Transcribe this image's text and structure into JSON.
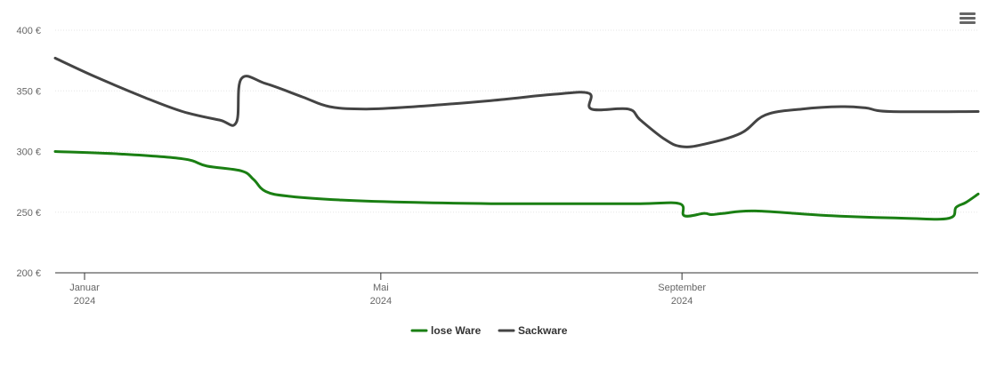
{
  "menu": {
    "icon": "hamburger-menu-icon"
  },
  "chart_data": {
    "type": "line",
    "title": "",
    "xlabel": "",
    "ylabel": "",
    "ylim": [
      200,
      400
    ],
    "y_ticks": [
      200,
      250,
      300,
      350,
      400
    ],
    "y_tick_labels": [
      "200 €",
      "250 €",
      "300 €",
      "350 €",
      "400 €"
    ],
    "x_range": [
      "2023-12-20",
      "2024-12-31"
    ],
    "x_ticks": [
      {
        "date": "2024-01-01",
        "month": "Januar",
        "year": "2024"
      },
      {
        "date": "2024-05-01",
        "month": "Mai",
        "year": "2024"
      },
      {
        "date": "2024-09-01",
        "month": "September",
        "year": "2024"
      }
    ],
    "grid": true,
    "legend_position": "bottom-center",
    "series": [
      {
        "name": "lose Ware",
        "color": "#1a7f13",
        "points": [
          [
            "2023-12-20",
            300
          ],
          [
            "2024-01-15",
            298
          ],
          [
            "2024-02-10",
            294
          ],
          [
            "2024-02-20",
            288
          ],
          [
            "2024-03-05",
            284
          ],
          [
            "2024-03-10",
            277
          ],
          [
            "2024-03-15",
            267
          ],
          [
            "2024-03-25",
            263
          ],
          [
            "2024-04-15",
            260
          ],
          [
            "2024-05-15",
            258
          ],
          [
            "2024-06-15",
            257
          ],
          [
            "2024-07-15",
            257
          ],
          [
            "2024-08-15",
            257
          ],
          [
            "2024-08-31",
            257
          ],
          [
            "2024-09-02",
            247
          ],
          [
            "2024-09-10",
            249
          ],
          [
            "2024-09-13",
            248
          ],
          [
            "2024-09-18",
            249
          ],
          [
            "2024-10-01",
            251
          ],
          [
            "2024-11-01",
            247
          ],
          [
            "2024-12-01",
            245
          ],
          [
            "2024-12-19",
            245
          ],
          [
            "2024-12-22",
            254
          ],
          [
            "2024-12-26",
            258
          ],
          [
            "2024-12-31",
            265
          ]
        ]
      },
      {
        "name": "Sackware",
        "color": "#444444",
        "points": [
          [
            "2023-12-20",
            377
          ],
          [
            "2024-01-05",
            362
          ],
          [
            "2024-01-25",
            345
          ],
          [
            "2024-02-10",
            333
          ],
          [
            "2024-02-25",
            326
          ],
          [
            "2024-03-03",
            324
          ],
          [
            "2024-03-05",
            360
          ],
          [
            "2024-03-15",
            356
          ],
          [
            "2024-03-30",
            345
          ],
          [
            "2024-04-10",
            337
          ],
          [
            "2024-04-25",
            335
          ],
          [
            "2024-05-15",
            337
          ],
          [
            "2024-06-15",
            342
          ],
          [
            "2024-07-10",
            347
          ],
          [
            "2024-07-25",
            348
          ],
          [
            "2024-07-26",
            335
          ],
          [
            "2024-08-10",
            335
          ],
          [
            "2024-08-15",
            326
          ],
          [
            "2024-08-25",
            310
          ],
          [
            "2024-09-01",
            304
          ],
          [
            "2024-09-10",
            306
          ],
          [
            "2024-09-25",
            315
          ],
          [
            "2024-10-05",
            330
          ],
          [
            "2024-10-20",
            335
          ],
          [
            "2024-11-05",
            337
          ],
          [
            "2024-11-15",
            336
          ],
          [
            "2024-11-25",
            333
          ],
          [
            "2024-12-31",
            333
          ]
        ]
      }
    ]
  }
}
